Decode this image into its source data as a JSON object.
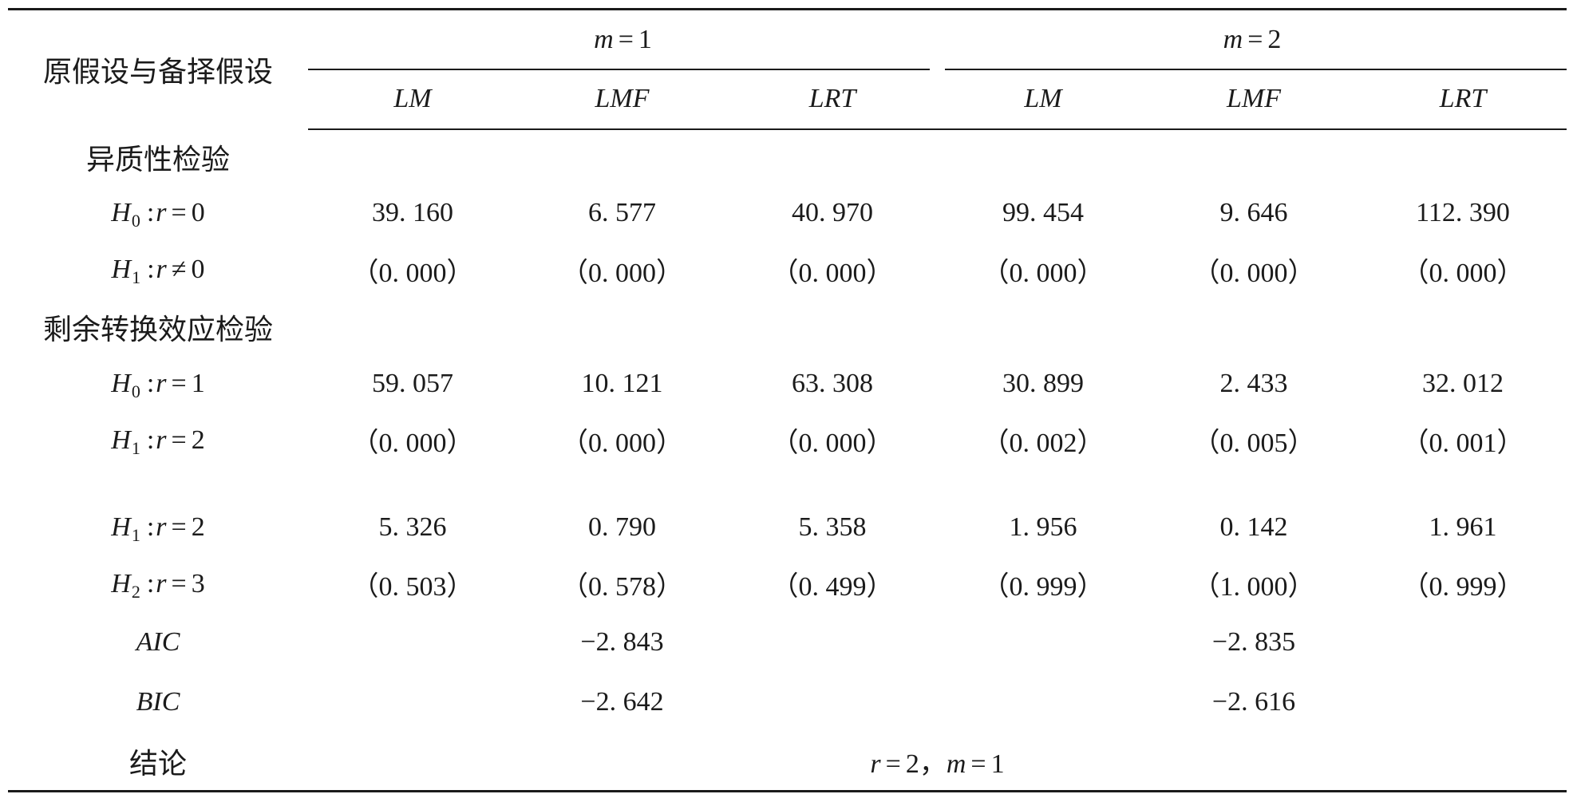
{
  "header": {
    "stub": "原假设与备择假设",
    "groups": [
      {
        "var": "m",
        "rel": "=",
        "val": "1"
      },
      {
        "var": "m",
        "rel": "=",
        "val": "2"
      }
    ],
    "stats": [
      "LM",
      "LMF",
      "LRT",
      "LM",
      "LMF",
      "LRT"
    ]
  },
  "rows": [
    {
      "label": "异质性检验"
    },
    {
      "hyp": {
        "sym": "H",
        "sub": "0",
        "colon": ":",
        "var": "r",
        "rel": "=",
        "rhs": "0"
      },
      "values": [
        "39. 160",
        "6. 577",
        "40. 970",
        "99. 454",
        "9. 646",
        "112. 390"
      ]
    },
    {
      "hyp": {
        "sym": "H",
        "sub": "1",
        "colon": ":",
        "var": "r",
        "rel": "≠",
        "rhs": "0"
      },
      "values": [
        "（0. 000）",
        "（0. 000）",
        "（0. 000）",
        "（0. 000）",
        "（0. 000）",
        "（0. 000）"
      ]
    },
    {
      "label": "剩余转换效应检验"
    },
    {
      "hyp": {
        "sym": "H",
        "sub": "0",
        "colon": ":",
        "var": "r",
        "rel": "=",
        "rhs": "1"
      },
      "values": [
        "59. 057",
        "10. 121",
        "63. 308",
        "30. 899",
        "2. 433",
        "32. 012"
      ]
    },
    {
      "hyp": {
        "sym": "H",
        "sub": "1",
        "colon": ":",
        "var": "r",
        "rel": "=",
        "rhs": "2"
      },
      "values": [
        "（0. 000）",
        "（0. 000）",
        "（0. 000）",
        "（0. 002）",
        "（0. 005）",
        "（0. 001）"
      ]
    },
    {
      "hyp": {
        "sym": "H",
        "sub": "1",
        "colon": ":",
        "var": "r",
        "rel": "=",
        "rhs": "2"
      },
      "values": [
        "5. 326",
        "0. 790",
        "5. 358",
        "1. 956",
        "0. 142",
        "1. 961"
      ]
    },
    {
      "hyp": {
        "sym": "H",
        "sub": "2",
        "colon": ":",
        "var": "r",
        "rel": "=",
        "rhs": "3"
      },
      "values": [
        "（0. 503）",
        "（0. 578）",
        "（0. 499）",
        "（0. 999）",
        "（1. 000）",
        "（0. 999）"
      ]
    }
  ],
  "criteria": [
    {
      "label": "AIC",
      "m1": "−2. 843",
      "m2": "−2. 835"
    },
    {
      "label": "BIC",
      "m1": "−2. 642",
      "m2": "−2. 616"
    }
  ],
  "conclusion": {
    "label": "结论",
    "r_var": "r",
    "r_rel": "=",
    "r_val": "2",
    "sep": "，",
    "m_var": "m",
    "m_rel": "=",
    "m_val": "1"
  }
}
